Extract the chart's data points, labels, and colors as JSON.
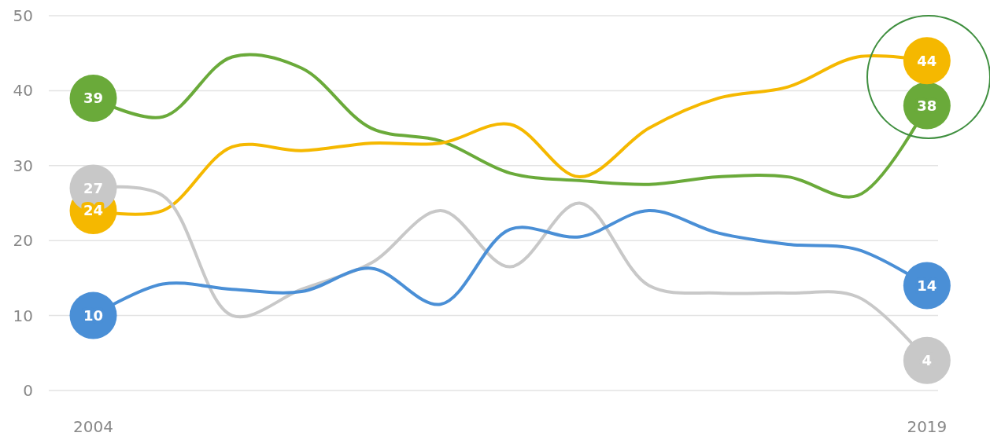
{
  "chart_data": {
    "type": "line",
    "x": [
      2004,
      2005.25,
      2006.5,
      2007.75,
      2009,
      2010.25,
      2011.5,
      2012.75,
      2014,
      2015.25,
      2016.5,
      2017.75,
      2019
    ],
    "xlim": [
      2003.2,
      2019.2
    ],
    "xticks": [
      2004,
      2019
    ],
    "ylim": [
      0,
      50
    ],
    "yticks": [
      0,
      10,
      20,
      30,
      40,
      50
    ],
    "grid": "y",
    "series": [
      {
        "color": "#6aaa3a",
        "values": [
          39,
          36.5,
          44.5,
          43,
          35,
          33.3,
          29,
          28,
          27.5,
          28.5,
          28.5,
          26,
          38
        ],
        "value_labels": [
          "39",
          null,
          null,
          null,
          null,
          null,
          null,
          null,
          null,
          null,
          null,
          null,
          "38"
        ]
      },
      {
        "color": "#f5b800",
        "values": [
          24,
          24,
          32.5,
          32,
          33,
          33,
          35.5,
          28.5,
          35,
          39,
          40.5,
          44.5,
          44
        ],
        "value_labels": [
          "24",
          null,
          null,
          null,
          null,
          null,
          null,
          null,
          null,
          null,
          null,
          null,
          "44"
        ]
      },
      {
        "color": "#c8c8c8",
        "values": [
          27,
          26,
          10,
          13.5,
          17,
          24,
          16.5,
          25,
          14,
          13,
          13,
          12.5,
          4
        ],
        "value_labels": [
          "27",
          null,
          null,
          null,
          null,
          null,
          null,
          null,
          null,
          null,
          null,
          null,
          "4"
        ]
      },
      {
        "color": "#4a8fd6",
        "values": [
          10,
          14.2,
          13.5,
          13.2,
          16.3,
          11.5,
          21.5,
          20.5,
          24,
          21,
          19.5,
          18.8,
          14
        ],
        "value_labels": [
          "10",
          null,
          null,
          null,
          null,
          null,
          null,
          null,
          null,
          null,
          null,
          null,
          "14"
        ]
      }
    ]
  }
}
